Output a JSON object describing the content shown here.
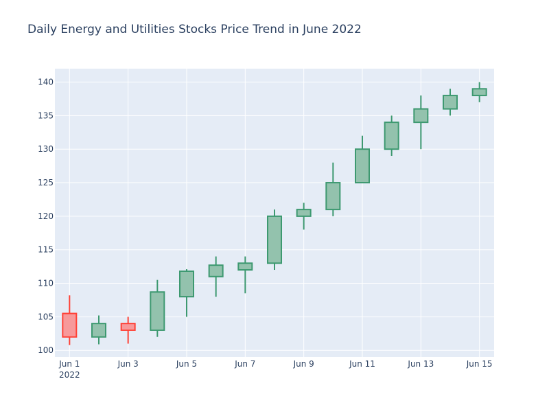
{
  "chart_data": {
    "type": "candlestick",
    "title": "Daily Energy and Utilities Stocks Price Trend in June 2022",
    "xlabel": "",
    "ylabel": "",
    "x_ticks": [
      "Jun 1",
      "Jun 3",
      "Jun 5",
      "Jun 7",
      "Jun 9",
      "Jun 11",
      "Jun 13",
      "Jun 15"
    ],
    "x_tick_year": "2022",
    "y_ticks": [
      100,
      105,
      110,
      115,
      120,
      125,
      130,
      135,
      140
    ],
    "ylim": [
      99,
      142
    ],
    "xlim_days": [
      0.5,
      15.5
    ],
    "grid": true,
    "colors": {
      "increasing": "#3d9970",
      "increasing_fill": "#93c2ad",
      "decreasing": "#ff4136",
      "decreasing_fill": "#f7999a",
      "plot_bg": "#e5ecf6",
      "grid": "#ffffff",
      "text": "#2a3f5f"
    },
    "candles": [
      {
        "date": "2022-06-01",
        "open": 105.5,
        "high": 108.2,
        "low": 100.8,
        "close": 102.0
      },
      {
        "date": "2022-06-02",
        "open": 102.0,
        "high": 105.2,
        "low": 100.9,
        "close": 104.0
      },
      {
        "date": "2022-06-03",
        "open": 104.0,
        "high": 105.0,
        "low": 101.0,
        "close": 103.0
      },
      {
        "date": "2022-06-04",
        "open": 103.0,
        "high": 110.5,
        "low": 102.0,
        "close": 108.7
      },
      {
        "date": "2022-06-05",
        "open": 108.0,
        "high": 112.1,
        "low": 105.0,
        "close": 111.8
      },
      {
        "date": "2022-06-06",
        "open": 111.0,
        "high": 114.0,
        "low": 108.0,
        "close": 112.7
      },
      {
        "date": "2022-06-07",
        "open": 112.0,
        "high": 114.0,
        "low": 108.5,
        "close": 113.0
      },
      {
        "date": "2022-06-08",
        "open": 113.0,
        "high": 121.0,
        "low": 112.0,
        "close": 120.0
      },
      {
        "date": "2022-06-09",
        "open": 120.0,
        "high": 122.0,
        "low": 118.0,
        "close": 121.0
      },
      {
        "date": "2022-06-10",
        "open": 121.0,
        "high": 128.0,
        "low": 120.0,
        "close": 125.0
      },
      {
        "date": "2022-06-11",
        "open": 125.0,
        "high": 132.0,
        "low": 125.0,
        "close": 130.0
      },
      {
        "date": "2022-06-12",
        "open": 130.0,
        "high": 135.0,
        "low": 129.0,
        "close": 134.0
      },
      {
        "date": "2022-06-13",
        "open": 134.0,
        "high": 138.0,
        "low": 130.0,
        "close": 136.0
      },
      {
        "date": "2022-06-14",
        "open": 136.0,
        "high": 139.0,
        "low": 135.0,
        "close": 138.0
      },
      {
        "date": "2022-06-15",
        "open": 138.0,
        "high": 140.0,
        "low": 137.0,
        "close": 139.0
      }
    ]
  }
}
